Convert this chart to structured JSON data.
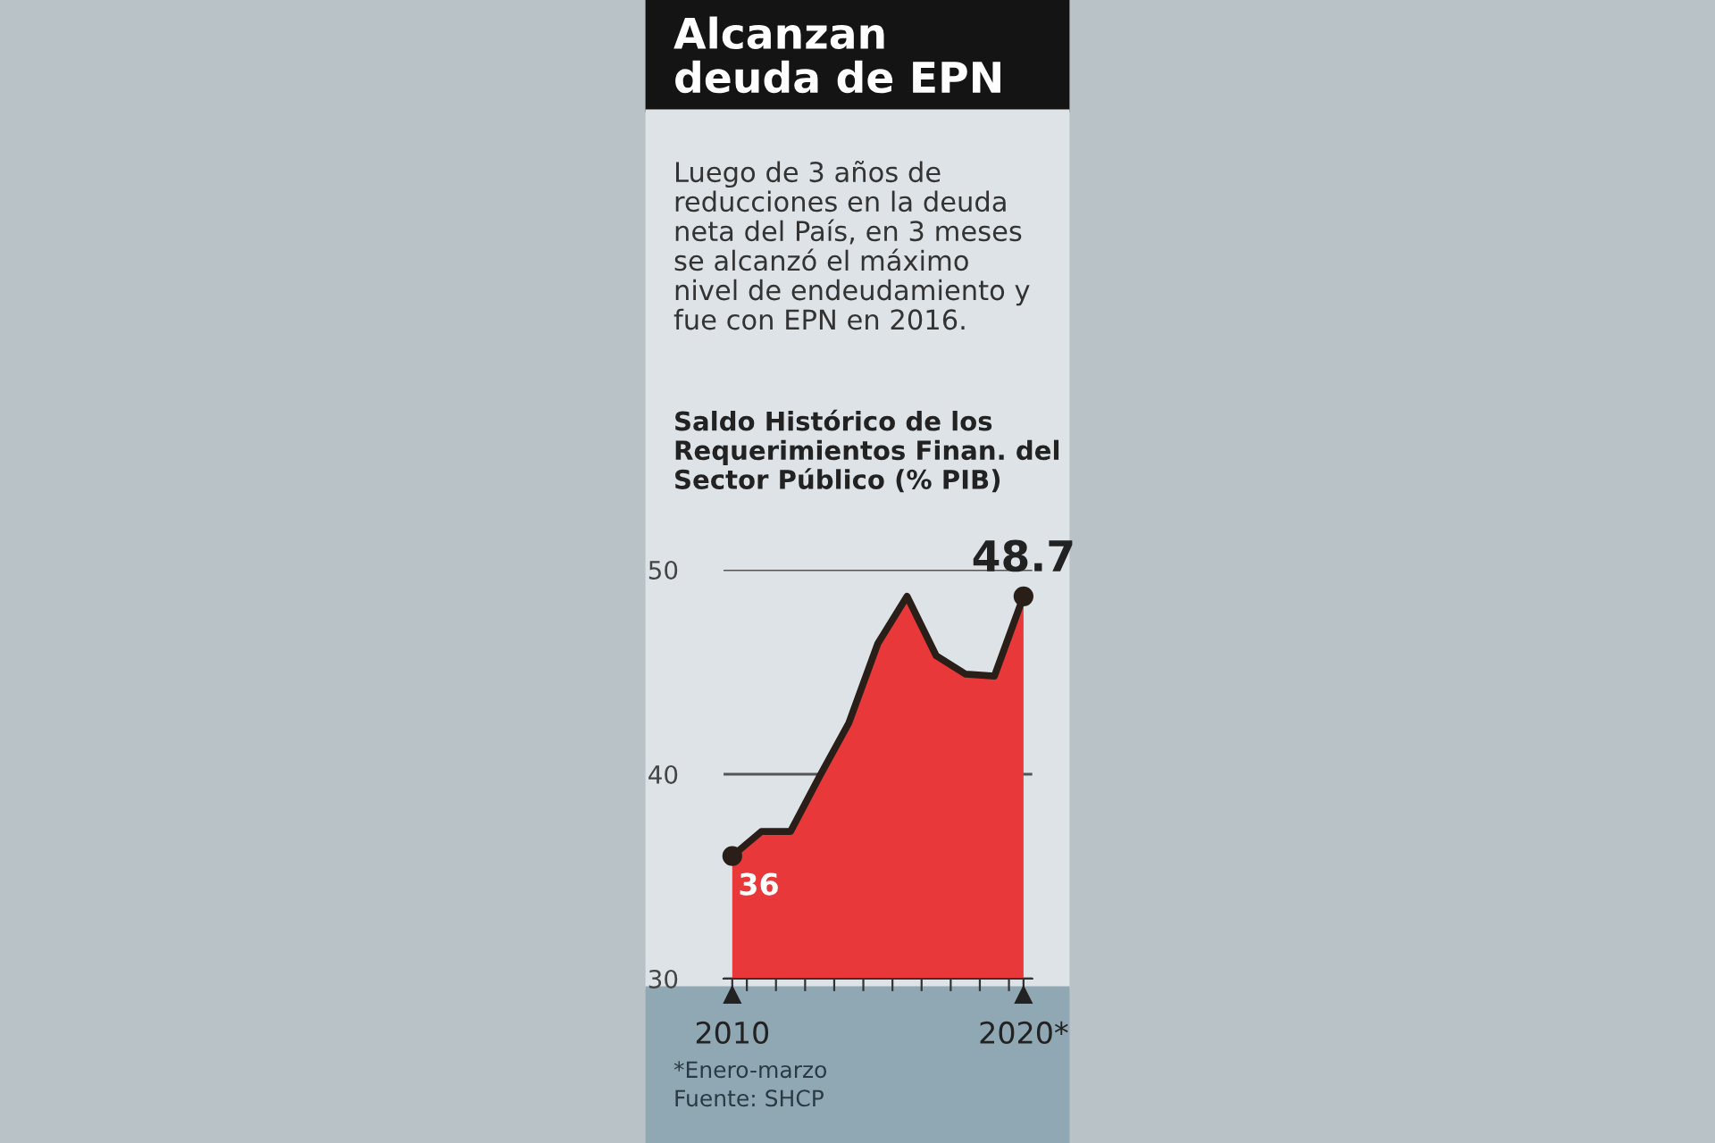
{
  "chart_data": {
    "type": "area",
    "title": "Alcanzan\ndeuda de EPN",
    "subtitle": "Luego de 3 años de\nreducciones en la deuda\nneta del País, en 3 meses\nse alcanzó el máximo\nnivel de endeudamiento y\nfue con EPN en 2016.",
    "ylabel": "Saldo Histórico de los\nRequerimientos Finan. del\nSector Público (% PIB)",
    "x": [
      2010,
      2011,
      2012,
      2013,
      2014,
      2015,
      2016,
      2017,
      2018,
      2019,
      2020
    ],
    "series": [
      {
        "color": "#e8383a",
        "values": [
          36,
          37.2,
          37.2,
          39.9,
          42.5,
          46.4,
          48.7,
          45.8,
          44.9,
          44.8,
          48.7
        ],
        "value_labels": [
          "36",
          null,
          null,
          null,
          null,
          null,
          null,
          null,
          null,
          null,
          "48.7"
        ]
      }
    ],
    "xlim": [
      2009.7,
      2020.3
    ],
    "xticks": [
      {
        "value": 2010,
        "label": "2010"
      },
      {
        "value": 2010.5,
        "label": null
      },
      {
        "value": 2011.5,
        "label": null
      },
      {
        "value": 2012.5,
        "label": null
      },
      {
        "value": 2013.5,
        "label": null
      },
      {
        "value": 2014.5,
        "label": null
      },
      {
        "value": 2015.5,
        "label": null
      },
      {
        "value": 2016.5,
        "label": null
      },
      {
        "value": 2017.5,
        "label": null
      },
      {
        "value": 2018.5,
        "label": null
      },
      {
        "value": 2019.5,
        "label": null
      },
      {
        "value": 2020,
        "label": "2020*"
      }
    ],
    "ylim": [
      30,
      50
    ],
    "yticks": [
      30,
      40,
      50
    ],
    "grid": "y",
    "annotations": [
      "*Enero-marzo",
      "Fuente: SHCP"
    ]
  }
}
